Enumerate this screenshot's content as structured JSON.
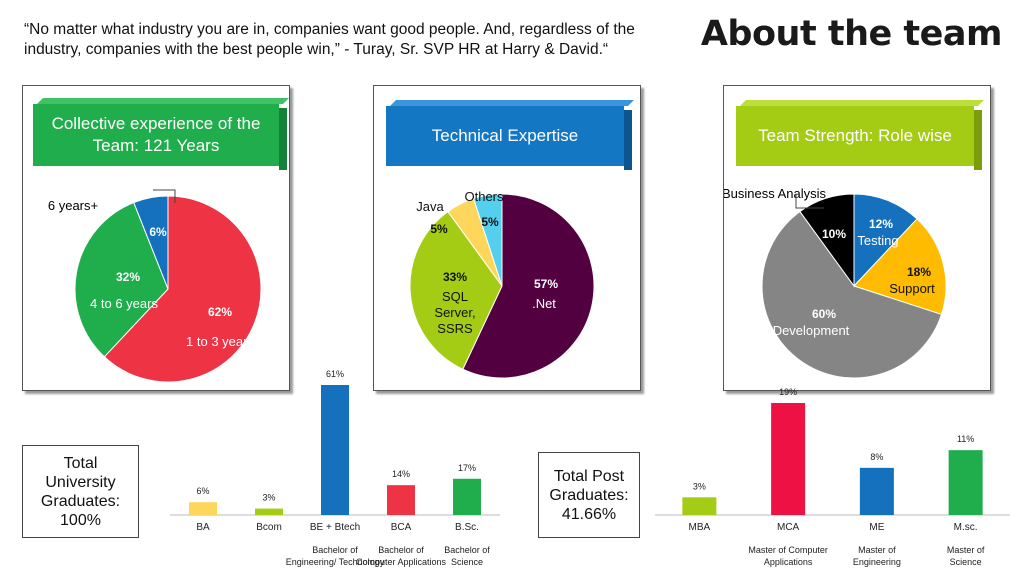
{
  "quote": "“No matter what industry you are in, companies want good people. And, regardless of the industry, companies with the best people win,” - Turay, Sr. SVP HR at Harry & David.“",
  "title": "About the team",
  "panels": {
    "experience": {
      "banner": "Collective experience of the Team: 121 Years",
      "color": "#1fae4b"
    },
    "technical": {
      "banner": "Technical Expertise",
      "color": "#1377c4"
    },
    "roles": {
      "banner": "Team Strength: Role wise",
      "color": "#a4cc14"
    }
  },
  "graduates": {
    "label": "Total University Graduates: 100%"
  },
  "postgraduates": {
    "label": "Total Post Graduates: 41.66%"
  },
  "chart_data": [
    {
      "type": "pie",
      "title": "Collective experience of the Team: 121 Years",
      "slices": [
        {
          "label": "1 to 3 years",
          "value": 62,
          "pct": "62%",
          "color": "#ee3344"
        },
        {
          "label": "4 to 6 years",
          "value": 32,
          "pct": "32%",
          "color": "#1fae4b"
        },
        {
          "label": "6 years+",
          "value": 6,
          "pct": "6%",
          "color": "#1570bd"
        }
      ]
    },
    {
      "type": "pie",
      "title": "Technical Expertise",
      "slices": [
        {
          "label": ".Net",
          "value": 57,
          "pct": "57%",
          "color": "#520040"
        },
        {
          "label": "SQL Server, SSRS",
          "value": 33,
          "pct": "33%",
          "color": "#a4cc14"
        },
        {
          "label": "Java",
          "value": 5,
          "pct": "5%",
          "color": "#ffd65c"
        },
        {
          "label": "Others",
          "value": 5,
          "pct": "5%",
          "color": "#55cfee"
        }
      ]
    },
    {
      "type": "pie",
      "title": "Team Strength: Role wise",
      "slices": [
        {
          "label": "Testing",
          "value": 12,
          "pct": "12%",
          "color": "#1570bd"
        },
        {
          "label": "Support",
          "value": 18,
          "pct": "18%",
          "color": "#ffbb00"
        },
        {
          "label": "Development",
          "value": 60,
          "pct": "60%",
          "color": "#858585"
        },
        {
          "label": "Business Analysis",
          "value": 10,
          "pct": "10%",
          "color": "#000000"
        }
      ]
    },
    {
      "type": "bar",
      "categories": [
        "BA",
        "Bcom",
        "BE + Btech",
        "BCA",
        "B.Sc."
      ],
      "values": [
        6,
        3,
        61,
        14,
        17
      ],
      "value_labels": [
        "6%",
        "3%",
        "61%",
        "14%",
        "17%"
      ],
      "descriptions": [
        "",
        "",
        "Bachelor of Engineering/ Technology",
        "Bachelor of Computer Applications",
        "Bachelor of Science"
      ],
      "colors": [
        "#ffd65c",
        "#a4cc14",
        "#1570bd",
        "#ee3344",
        "#1fae4b"
      ],
      "ylim": [
        0,
        61
      ]
    },
    {
      "type": "bar",
      "categories": [
        "MBA",
        "MCA",
        "ME",
        "M.sc."
      ],
      "values": [
        3,
        19,
        8,
        11
      ],
      "value_labels": [
        "3%",
        "19%",
        "8%",
        "11%"
      ],
      "descriptions": [
        "",
        "Master of Computer Applications",
        "Master of Engineering",
        "Master of Science"
      ],
      "colors": [
        "#a4cc14",
        "#ee1144",
        "#1570bd",
        "#1fae4b"
      ],
      "ylim": [
        0,
        19
      ]
    }
  ]
}
